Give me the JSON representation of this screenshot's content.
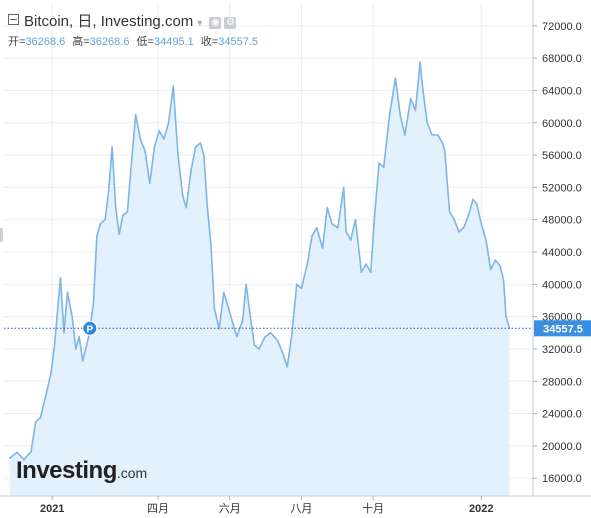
{
  "header": {
    "symbol": "Bitcoin",
    "sep1": ",",
    "interval": "日",
    "sep2": ",",
    "source": "Investing.com",
    "caret": "▾",
    "settings_icon": "gear-icon",
    "camera_icon": "snapshot-icon"
  },
  "ohlc": {
    "open_label": "开=",
    "open": "36268.6",
    "high_label": "高=",
    "high": "36268.6",
    "low_label": "低=",
    "low": "34495.1",
    "close_label": "收=",
    "close": "34557.5"
  },
  "logo": {
    "main": "Investing",
    "suffix": ".com"
  },
  "colors": {
    "line": "#7fb4e6",
    "fill": "#e2f1fb",
    "price_label_bg": "#3b8fe0",
    "marker": "#2f86de",
    "grid": "#e9edf1"
  },
  "chart_data": {
    "type": "area",
    "xlabel": "",
    "ylabel": "",
    "ylim": [
      13800,
      74700
    ],
    "y_ticks": [
      16000,
      20000,
      24000,
      28000,
      32000,
      36000,
      40000,
      44000,
      48000,
      52000,
      56000,
      60000,
      64000,
      68000,
      72000
    ],
    "y_tick_labels": [
      "16000.0",
      "20000.0",
      "24000.0",
      "28000.0",
      "32000.0",
      "36000.0",
      "40000.0",
      "44000.0",
      "48000.0",
      "52000.0",
      "56000.0",
      "60000.0",
      "64000.0",
      "68000.0",
      "72000.0"
    ],
    "x_ticks": [
      {
        "date": "2021-01-01",
        "label": "2021"
      },
      {
        "date": "2021-04-01",
        "label": "四月"
      },
      {
        "date": "2021-06-01",
        "label": "六月"
      },
      {
        "date": "2021-08-01",
        "label": "八月"
      },
      {
        "date": "2021-10-01",
        "label": "十月"
      },
      {
        "date": "2022-01-01",
        "label": "2022"
      }
    ],
    "x_range": [
      "2020-11-21",
      "2022-02-14"
    ],
    "last_price": 34557.5,
    "last_price_label": "34557.5",
    "marker": {
      "date": "2021-02-02",
      "value": 34557.5,
      "label": "P"
    },
    "grid": true,
    "series": [
      {
        "points": [
          [
            "2020-11-26",
            18500
          ],
          [
            "2020-12-02",
            19200
          ],
          [
            "2020-12-08",
            18300
          ],
          [
            "2020-12-14",
            19300
          ],
          [
            "2020-12-18",
            23000
          ],
          [
            "2020-12-22",
            23500
          ],
          [
            "2020-12-27",
            26500
          ],
          [
            "2020-12-31",
            29000
          ],
          [
            "2021-01-03",
            32500
          ],
          [
            "2021-01-08",
            40800
          ],
          [
            "2021-01-11",
            34000
          ],
          [
            "2021-01-14",
            39000
          ],
          [
            "2021-01-18",
            36000
          ],
          [
            "2021-01-21",
            32000
          ],
          [
            "2021-01-24",
            33500
          ],
          [
            "2021-01-27",
            30500
          ],
          [
            "2021-02-01",
            33500
          ],
          [
            "2021-02-05",
            37500
          ],
          [
            "2021-02-08",
            46000
          ],
          [
            "2021-02-11",
            47500
          ],
          [
            "2021-02-15",
            48000
          ],
          [
            "2021-02-18",
            51500
          ],
          [
            "2021-02-21",
            57000
          ],
          [
            "2021-02-24",
            49500
          ],
          [
            "2021-02-27",
            46200
          ],
          [
            "2021-03-02",
            48500
          ],
          [
            "2021-03-06",
            49000
          ],
          [
            "2021-03-10",
            56000
          ],
          [
            "2021-03-13",
            61000
          ],
          [
            "2021-03-17",
            58000
          ],
          [
            "2021-03-21",
            56500
          ],
          [
            "2021-03-25",
            52500
          ],
          [
            "2021-03-29",
            57000
          ],
          [
            "2021-04-02",
            59000
          ],
          [
            "2021-04-06",
            58000
          ],
          [
            "2021-04-10",
            60000
          ],
          [
            "2021-04-14",
            64500
          ],
          [
            "2021-04-18",
            56000
          ],
          [
            "2021-04-22",
            51000
          ],
          [
            "2021-04-25",
            49500
          ],
          [
            "2021-04-29",
            54000
          ],
          [
            "2021-05-03",
            57000
          ],
          [
            "2021-05-07",
            57500
          ],
          [
            "2021-05-10",
            56000
          ],
          [
            "2021-05-13",
            49500
          ],
          [
            "2021-05-16",
            45000
          ],
          [
            "2021-05-19",
            37000
          ],
          [
            "2021-05-23",
            34500
          ],
          [
            "2021-05-27",
            39000
          ],
          [
            "2021-06-01",
            36500
          ],
          [
            "2021-06-07",
            33500
          ],
          [
            "2021-06-12",
            35500
          ],
          [
            "2021-06-15",
            40000
          ],
          [
            "2021-06-19",
            35500
          ],
          [
            "2021-06-22",
            32500
          ],
          [
            "2021-06-26",
            32000
          ],
          [
            "2021-07-01",
            33500
          ],
          [
            "2021-07-06",
            34000
          ],
          [
            "2021-07-12",
            33000
          ],
          [
            "2021-07-16",
            31500
          ],
          [
            "2021-07-20",
            29800
          ],
          [
            "2021-07-24",
            34000
          ],
          [
            "2021-07-28",
            40000
          ],
          [
            "2021-08-01",
            39500
          ],
          [
            "2021-08-06",
            42500
          ],
          [
            "2021-08-10",
            46000
          ],
          [
            "2021-08-14",
            47000
          ],
          [
            "2021-08-19",
            44500
          ],
          [
            "2021-08-23",
            49500
          ],
          [
            "2021-08-27",
            47500
          ],
          [
            "2021-09-01",
            47000
          ],
          [
            "2021-09-06",
            52000
          ],
          [
            "2021-09-08",
            46500
          ],
          [
            "2021-09-12",
            45500
          ],
          [
            "2021-09-16",
            48000
          ],
          [
            "2021-09-21",
            41500
          ],
          [
            "2021-09-25",
            42500
          ],
          [
            "2021-09-29",
            41500
          ],
          [
            "2021-10-02",
            48000
          ],
          [
            "2021-10-06",
            55000
          ],
          [
            "2021-10-10",
            54500
          ],
          [
            "2021-10-15",
            61000
          ],
          [
            "2021-10-20",
            65500
          ],
          [
            "2021-10-24",
            61000
          ],
          [
            "2021-10-28",
            58500
          ],
          [
            "2021-11-02",
            63000
          ],
          [
            "2021-11-06",
            61500
          ],
          [
            "2021-11-10",
            67500
          ],
          [
            "2021-11-12",
            64500
          ],
          [
            "2021-11-16",
            60000
          ],
          [
            "2021-11-20",
            58500
          ],
          [
            "2021-11-25",
            58500
          ],
          [
            "2021-11-29",
            57500
          ],
          [
            "2021-12-01",
            56500
          ],
          [
            "2021-12-05",
            49000
          ],
          [
            "2021-12-09",
            48000
          ],
          [
            "2021-12-13",
            46500
          ],
          [
            "2021-12-17",
            47000
          ],
          [
            "2021-12-21",
            48500
          ],
          [
            "2021-12-25",
            50500
          ],
          [
            "2021-12-28",
            50000
          ],
          [
            "2022-01-01",
            47500
          ],
          [
            "2022-01-05",
            45500
          ],
          [
            "2022-01-09",
            41800
          ],
          [
            "2022-01-13",
            43000
          ],
          [
            "2022-01-17",
            42300
          ],
          [
            "2022-01-20",
            40500
          ],
          [
            "2022-01-22",
            36000
          ],
          [
            "2022-01-25",
            34557.5
          ]
        ]
      }
    ]
  }
}
